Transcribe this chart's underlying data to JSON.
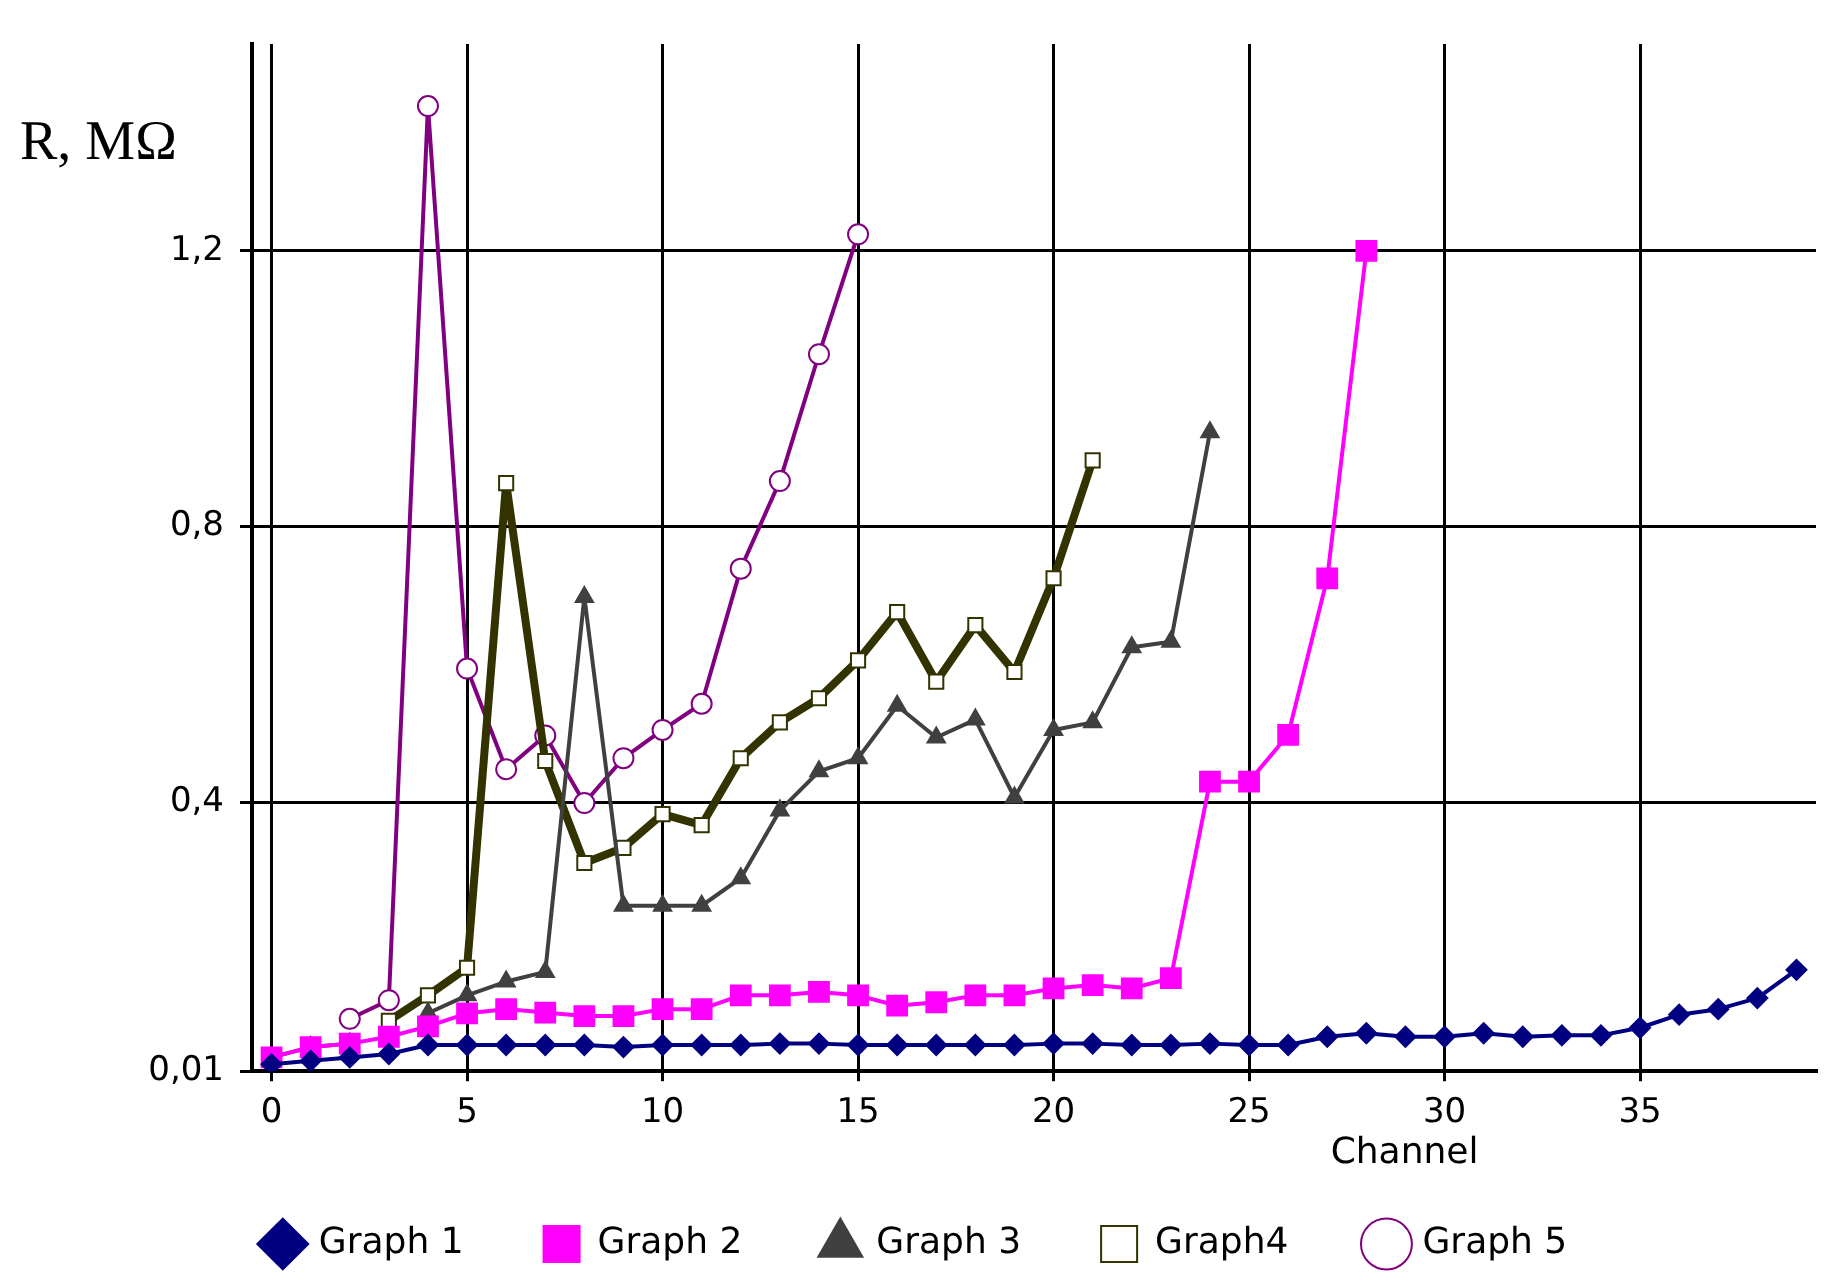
{
  "chart_data": {
    "type": "line",
    "ylabel": "R, MΩ",
    "xlabel": "Channel",
    "x": [
      0,
      1,
      2,
      3,
      4,
      5,
      6,
      7,
      8,
      9,
      10,
      11,
      12,
      13,
      14,
      15,
      16,
      17,
      18,
      19,
      20,
      21,
      22,
      23,
      24,
      25,
      26,
      27,
      28,
      29,
      30,
      31,
      32,
      33,
      34,
      35,
      36,
      37,
      38,
      39
    ],
    "xlim": [
      -0.5,
      39.5
    ],
    "xticks": [
      0,
      5,
      10,
      15,
      20,
      25,
      30,
      35
    ],
    "ylim": [
      0.01,
      1.5
    ],
    "yticks": [
      {
        "value": 0.01,
        "label": "0,01"
      },
      {
        "value": 0.4,
        "label": "0,4"
      },
      {
        "value": 0.8,
        "label": "0,8"
      },
      {
        "value": 1.2,
        "label": "1,2"
      }
    ],
    "grid": true,
    "legend": "bottom",
    "line_style": "solid",
    "series": [
      {
        "name": "Graph 1",
        "color": "#000080",
        "marker": "diamond",
        "values": [
          0.02,
          0.025,
          0.03,
          0.035,
          0.048,
          0.048,
          0.048,
          0.048,
          0.048,
          0.045,
          0.048,
          0.048,
          0.048,
          0.05,
          0.05,
          0.048,
          0.048,
          0.048,
          0.048,
          0.048,
          0.05,
          0.05,
          0.048,
          0.048,
          0.05,
          0.048,
          0.048,
          0.06,
          0.065,
          0.06,
          0.06,
          0.065,
          0.06,
          0.062,
          0.062,
          0.073,
          0.092,
          0.1,
          0.116,
          0.157
        ]
      },
      {
        "name": "Graph 2",
        "color": "#ff00ff",
        "marker": "square",
        "values": [
          0.03,
          0.045,
          0.05,
          0.06,
          0.075,
          0.094,
          0.1,
          0.095,
          0.09,
          0.09,
          0.1,
          0.1,
          0.12,
          0.12,
          0.125,
          0.12,
          0.105,
          0.11,
          0.12,
          0.12,
          0.13,
          0.135,
          0.13,
          0.145,
          0.43,
          0.43,
          0.498,
          0.725,
          1.2,
          null,
          null,
          null,
          null,
          null,
          null,
          null,
          null,
          null,
          null,
          null
        ]
      },
      {
        "name": "Graph 3",
        "color": "#404040",
        "marker": "triangle",
        "values": [
          0.03,
          0.045,
          0.05,
          null,
          0.094,
          0.12,
          0.14,
          0.154,
          0.698,
          0.25,
          0.25,
          0.25,
          0.29,
          0.388,
          0.445,
          0.464,
          0.54,
          0.494,
          0.52,
          0.407,
          0.505,
          0.516,
          0.625,
          0.633,
          0.937,
          null,
          null,
          null,
          null,
          null,
          null,
          null,
          null,
          null,
          null,
          null,
          null,
          null,
          null,
          null
        ]
      },
      {
        "name": "Graph4",
        "color": "#333300",
        "marker": "square",
        "values": [
          null,
          null,
          null,
          0.083,
          0.12,
          0.16,
          0.863,
          0.46,
          0.312,
          0.334,
          0.383,
          0.367,
          0.464,
          0.516,
          0.551,
          0.606,
          0.676,
          0.575,
          0.657,
          0.589,
          0.725,
          0.896,
          null,
          null,
          null,
          null,
          null,
          null,
          null,
          null,
          null,
          null,
          null,
          null,
          null,
          null,
          null,
          null,
          null,
          null
        ]
      },
      {
        "name": "Graph 5",
        "color": "#800080",
        "marker": "circle",
        "values": [
          null,
          null,
          0.086,
          0.113,
          1.41,
          0.594,
          0.448,
          0.497,
          0.399,
          0.464,
          0.505,
          0.543,
          0.739,
          0.866,
          1.05,
          1.224,
          null,
          null,
          null,
          null,
          null,
          null,
          null,
          null,
          null,
          null,
          null,
          null,
          null,
          null,
          null,
          null,
          null,
          null,
          null,
          null,
          null,
          null,
          null,
          null
        ]
      }
    ]
  }
}
